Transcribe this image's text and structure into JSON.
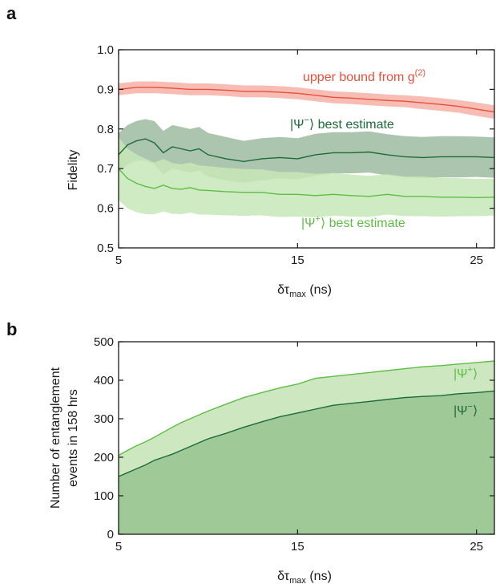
{
  "chart_data": [
    {
      "panel": "a",
      "type": "line",
      "ylabel": "Fidelity",
      "xlabel_main": "δτ",
      "xlabel_sub": "max",
      "xlabel_unit": " (ns)",
      "xlim": [
        5,
        26
      ],
      "ylim": [
        0.5,
        1.0
      ],
      "xticks": [
        5,
        15,
        25
      ],
      "yticks": [
        "0.5",
        "0.6",
        "0.7",
        "0.8",
        "0.9",
        "1.0"
      ],
      "grid": false,
      "series": [
        {
          "label_main": "upper bound from g",
          "label_sup": "(2)",
          "color": "#e8503a",
          "band_color": "#f6b6ac",
          "x": [
            5,
            6,
            7,
            8,
            9,
            10,
            11,
            12,
            13,
            14,
            15,
            16,
            17,
            18,
            19,
            20,
            21,
            22,
            23,
            24,
            25,
            26
          ],
          "y": [
            0.9,
            0.905,
            0.905,
            0.903,
            0.9,
            0.9,
            0.898,
            0.895,
            0.895,
            0.893,
            0.89,
            0.885,
            0.88,
            0.878,
            0.875,
            0.872,
            0.87,
            0.866,
            0.862,
            0.857,
            0.85,
            0.843
          ],
          "lower": [
            0.885,
            0.89,
            0.89,
            0.888,
            0.885,
            0.885,
            0.883,
            0.88,
            0.88,
            0.878,
            0.875,
            0.87,
            0.865,
            0.863,
            0.86,
            0.857,
            0.855,
            0.85,
            0.846,
            0.841,
            0.833,
            0.826
          ],
          "upper": [
            0.915,
            0.92,
            0.92,
            0.918,
            0.915,
            0.915,
            0.913,
            0.91,
            0.91,
            0.908,
            0.905,
            0.9,
            0.895,
            0.893,
            0.89,
            0.887,
            0.885,
            0.882,
            0.878,
            0.873,
            0.867,
            0.86
          ]
        },
        {
          "label_main": "best estimate",
          "label_state": "|Ψ",
          "label_sup": "−",
          "color": "#1d6a3a",
          "band_color": "#a3bfa6",
          "x": [
            5,
            5.5,
            6,
            6.5,
            7,
            7.5,
            8,
            8.5,
            9,
            9.5,
            10,
            11,
            12,
            13,
            14,
            15,
            16,
            17,
            18,
            19,
            20,
            21,
            22,
            23,
            24,
            25,
            26
          ],
          "y": [
            0.735,
            0.76,
            0.77,
            0.775,
            0.765,
            0.74,
            0.755,
            0.75,
            0.745,
            0.75,
            0.735,
            0.725,
            0.718,
            0.725,
            0.728,
            0.725,
            0.735,
            0.74,
            0.74,
            0.742,
            0.735,
            0.73,
            0.728,
            0.73,
            0.73,
            0.73,
            0.728
          ],
          "lower": [
            0.69,
            0.71,
            0.72,
            0.72,
            0.71,
            0.685,
            0.7,
            0.695,
            0.69,
            0.695,
            0.68,
            0.67,
            0.665,
            0.67,
            0.675,
            0.673,
            0.682,
            0.688,
            0.688,
            0.69,
            0.683,
            0.678,
            0.676,
            0.678,
            0.678,
            0.679,
            0.677
          ],
          "upper": [
            0.79,
            0.81,
            0.82,
            0.825,
            0.82,
            0.795,
            0.81,
            0.805,
            0.8,
            0.805,
            0.79,
            0.78,
            0.77,
            0.777,
            0.78,
            0.777,
            0.788,
            0.792,
            0.792,
            0.794,
            0.787,
            0.782,
            0.78,
            0.782,
            0.782,
            0.781,
            0.779
          ]
        },
        {
          "label_main": "best estimate",
          "label_state": "|Ψ",
          "label_sup": "+",
          "color": "#5ebd45",
          "band_color": "#c7e8b8",
          "x": [
            5,
            5.5,
            6,
            6.5,
            7,
            7.5,
            8,
            8.5,
            9,
            9.5,
            10,
            11,
            12,
            13,
            14,
            15,
            16,
            17,
            18,
            19,
            20,
            21,
            22,
            23,
            24,
            25,
            26
          ],
          "y": [
            0.7,
            0.675,
            0.663,
            0.655,
            0.65,
            0.658,
            0.65,
            0.648,
            0.652,
            0.646,
            0.645,
            0.642,
            0.64,
            0.64,
            0.635,
            0.635,
            0.632,
            0.635,
            0.632,
            0.63,
            0.635,
            0.63,
            0.63,
            0.628,
            0.628,
            0.627,
            0.628
          ],
          "lower": [
            0.62,
            0.6,
            0.59,
            0.585,
            0.585,
            0.592,
            0.586,
            0.585,
            0.589,
            0.584,
            0.584,
            0.582,
            0.581,
            0.582,
            0.578,
            0.579,
            0.577,
            0.581,
            0.579,
            0.578,
            0.584,
            0.58,
            0.58,
            0.579,
            0.58,
            0.58,
            0.582
          ],
          "upper": [
            0.78,
            0.75,
            0.736,
            0.725,
            0.715,
            0.724,
            0.714,
            0.711,
            0.715,
            0.708,
            0.706,
            0.702,
            0.699,
            0.698,
            0.692,
            0.691,
            0.687,
            0.689,
            0.685,
            0.682,
            0.686,
            0.68,
            0.68,
            0.677,
            0.676,
            0.674,
            0.674
          ]
        }
      ]
    },
    {
      "panel": "b",
      "type": "area",
      "ylabel_line1": "Number of entanglement",
      "ylabel_line2": "events in 158 hrs",
      "xlabel_main": "δτ",
      "xlabel_sub": "max",
      "xlabel_unit": " (ns)",
      "xlim": [
        5,
        26
      ],
      "ylim": [
        0,
        500
      ],
      "xticks": [
        5,
        15,
        25
      ],
      "yticks": [
        "0",
        "100",
        "200",
        "300",
        "400",
        "500"
      ],
      "grid": false,
      "series": [
        {
          "label_state": "|Ψ",
          "label_sup": "+",
          "color": "#5ebd45",
          "fill": "#cde8c0",
          "x": [
            5,
            5.5,
            6,
            6.5,
            7,
            7.5,
            8,
            8.5,
            9,
            10,
            11,
            12,
            13,
            14,
            15,
            16,
            17,
            18,
            19,
            20,
            21,
            22,
            23,
            24,
            25,
            26
          ],
          "y": [
            205,
            218,
            230,
            240,
            252,
            265,
            278,
            290,
            300,
            320,
            338,
            355,
            368,
            380,
            390,
            405,
            410,
            415,
            420,
            425,
            430,
            435,
            438,
            442,
            446,
            450
          ]
        },
        {
          "label_state": "|Ψ",
          "label_sup": "−",
          "color": "#1d6a3a",
          "fill": "#9fca97",
          "x": [
            5,
            5.5,
            6,
            6.5,
            7,
            7.5,
            8,
            8.5,
            9,
            10,
            11,
            12,
            13,
            14,
            15,
            16,
            17,
            18,
            19,
            20,
            21,
            22,
            23,
            24,
            25,
            26
          ],
          "y": [
            150,
            160,
            170,
            180,
            192,
            200,
            208,
            218,
            228,
            248,
            262,
            278,
            292,
            305,
            315,
            325,
            335,
            340,
            345,
            350,
            355,
            358,
            360,
            365,
            368,
            372
          ]
        }
      ]
    }
  ]
}
